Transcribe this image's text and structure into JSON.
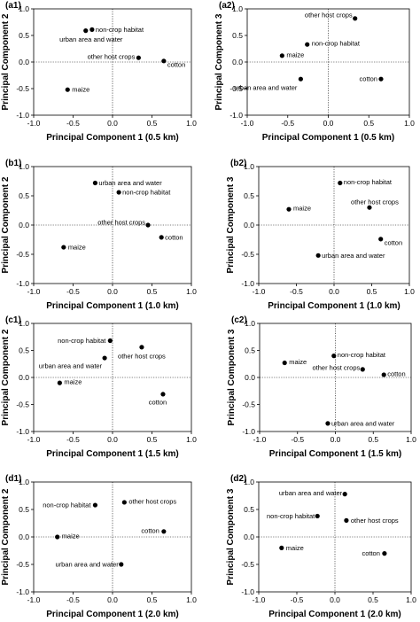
{
  "chart_data": [
    {
      "type": "scatter",
      "panel": "(a1)",
      "xlabel": "Principal Component 1 (0.5 km)",
      "ylabel": "Principal Component 2",
      "xlim": [
        -1.0,
        1.0
      ],
      "ylim": [
        -1.0,
        1.0
      ],
      "xticks": [
        "-1.0",
        "-0.5",
        "0.0",
        "0.5",
        "1.0"
      ],
      "yticks": [
        "1.0",
        "0.5",
        "0.0",
        "-0.5",
        "-1.0"
      ],
      "points": [
        {
          "label": "urban area and water",
          "x": -0.34,
          "y": 0.59
        },
        {
          "label": "non-crop habitat",
          "x": -0.26,
          "y": 0.61
        },
        {
          "label": "other host crops",
          "x": 0.33,
          "y": 0.08
        },
        {
          "label": "cotton",
          "x": 0.65,
          "y": 0.02
        },
        {
          "label": "maize",
          "x": -0.57,
          "y": -0.52
        }
      ]
    },
    {
      "type": "scatter",
      "panel": "(a2)",
      "xlabel": "Principal Component 1 (0.5 km)",
      "ylabel": "Principal Component 3",
      "xlim": [
        -1.0,
        1.0
      ],
      "ylim": [
        -1.0,
        1.0
      ],
      "xticks": [
        "-1.0",
        "-0.5",
        "0.0",
        "0.5",
        "1.0"
      ],
      "yticks": [
        "1.0",
        "0.5",
        "0.0",
        "-0.5",
        "-1.0"
      ],
      "points": [
        {
          "label": "other host crops",
          "x": 0.33,
          "y": 0.82
        },
        {
          "label": "non-crop habitat",
          "x": -0.26,
          "y": 0.33
        },
        {
          "label": "maize",
          "x": -0.57,
          "y": 0.12
        },
        {
          "label": "urban area and water",
          "x": -0.34,
          "y": -0.32
        },
        {
          "label": "cotton",
          "x": 0.65,
          "y": -0.32
        }
      ]
    },
    {
      "type": "scatter",
      "panel": "(b1)",
      "xlabel": "Principal Component 1 (1.0 km)",
      "ylabel": "Principal Component 2",
      "xlim": [
        -1.0,
        1.0
      ],
      "ylim": [
        -1.0,
        1.0
      ],
      "xticks": [
        "-1.0",
        "-0.5",
        "0.0",
        "0.5",
        "1.0"
      ],
      "yticks": [
        "1.0",
        "0.5",
        "0.0",
        "-0.5",
        "-1.0"
      ],
      "points": [
        {
          "label": "urban area and water",
          "x": -0.22,
          "y": 0.72
        },
        {
          "label": "non-crop habitat",
          "x": 0.08,
          "y": 0.56
        },
        {
          "label": "other host crops",
          "x": 0.45,
          "y": 0.0
        },
        {
          "label": "cotton",
          "x": 0.62,
          "y": -0.21
        },
        {
          "label": "maize",
          "x": -0.62,
          "y": -0.38
        }
      ]
    },
    {
      "type": "scatter",
      "panel": "(b2)",
      "xlabel": "Principal Component 1 (1.0 km)",
      "ylabel": "Principal Component 3",
      "xlim": [
        -1.0,
        1.0
      ],
      "ylim": [
        -1.0,
        1.0
      ],
      "xticks": [
        "-1.0",
        "-0.5",
        "0.0",
        "0.5",
        "1.0"
      ],
      "yticks": [
        "1.0",
        "0.5",
        "0.0",
        "-0.5",
        "-1.0"
      ],
      "points": [
        {
          "label": "non-crop habitat",
          "x": 0.08,
          "y": 0.72
        },
        {
          "label": "other host crops",
          "x": 0.47,
          "y": 0.3
        },
        {
          "label": "maize",
          "x": -0.6,
          "y": 0.27
        },
        {
          "label": "cotton",
          "x": 0.62,
          "y": -0.24
        },
        {
          "label": "urban area and water",
          "x": -0.21,
          "y": -0.52
        }
      ]
    },
    {
      "type": "scatter",
      "panel": "(c1)",
      "xlabel": "Principal Component 1 (1.5 km)",
      "ylabel": "Principal Component 2",
      "xlim": [
        -1.0,
        1.0
      ],
      "ylim": [
        -1.0,
        1.0
      ],
      "xticks": [
        "-1.0",
        "-0.5",
        "0.0",
        "0.5",
        "1.0"
      ],
      "yticks": [
        "1.0",
        "0.5",
        "0.0",
        "-0.5",
        "-1.0"
      ],
      "points": [
        {
          "label": "non-crop habitat",
          "x": -0.03,
          "y": 0.68
        },
        {
          "label": "other host crops",
          "x": 0.37,
          "y": 0.56
        },
        {
          "label": "urban area and water",
          "x": -0.1,
          "y": 0.36
        },
        {
          "label": "maize",
          "x": -0.67,
          "y": -0.1
        },
        {
          "label": "cotton",
          "x": 0.64,
          "y": -0.31
        }
      ]
    },
    {
      "type": "scatter",
      "panel": "(c2)",
      "xlabel": "Principal Component 1 (1.5 km)",
      "ylabel": "Principal Component 3",
      "xlim": [
        -1.0,
        1.0
      ],
      "ylim": [
        -1.0,
        1.0
      ],
      "xticks": [
        "-1.0",
        "-0.5",
        "0.0",
        "0.5",
        "1.0"
      ],
      "yticks": [
        "1.0",
        "0.5",
        "0.0",
        "-0.5",
        "-1.0"
      ],
      "points": [
        {
          "label": "non-crop habitat",
          "x": -0.02,
          "y": 0.4
        },
        {
          "label": "maize",
          "x": -0.67,
          "y": 0.27
        },
        {
          "label": "other host crops",
          "x": 0.36,
          "y": 0.15
        },
        {
          "label": "cotton",
          "x": 0.64,
          "y": 0.05
        },
        {
          "label": "urban area and water",
          "x": -0.1,
          "y": -0.85
        }
      ]
    },
    {
      "type": "scatter",
      "panel": "(d1)",
      "xlabel": "Principal Component 1 (2.0 km)",
      "ylabel": "Principal Component 2",
      "xlim": [
        -1.0,
        1.0
      ],
      "ylim": [
        -1.0,
        1.0
      ],
      "xticks": [
        "-1.0",
        "-0.5",
        "0.0",
        "0.5",
        "1.0"
      ],
      "yticks": [
        "1.0",
        "0.5",
        "0.0",
        "-0.5",
        "-1.0"
      ],
      "points": [
        {
          "label": "other host crops",
          "x": 0.15,
          "y": 0.63
        },
        {
          "label": "non-crop habitat",
          "x": -0.22,
          "y": 0.58
        },
        {
          "label": "cotton",
          "x": 0.65,
          "y": 0.1
        },
        {
          "label": "maize",
          "x": -0.7,
          "y": 0.0
        },
        {
          "label": "urban area and water",
          "x": 0.11,
          "y": -0.5
        }
      ]
    },
    {
      "type": "scatter",
      "panel": "(d2)",
      "xlabel": "Principal Component 1 (2.0 km)",
      "ylabel": "Principal Component 3",
      "xlim": [
        -1.0,
        1.0
      ],
      "ylim": [
        -1.0,
        1.0
      ],
      "xticks": [
        "-1.0",
        "-0.5",
        "0.0",
        "0.5",
        "1.0"
      ],
      "yticks": [
        "1.0",
        "0.5",
        "0.0",
        "-0.5",
        "-1.0"
      ],
      "points": [
        {
          "label": "urban area and water",
          "x": 0.13,
          "y": 0.78
        },
        {
          "label": "non-crop habitat",
          "x": -0.23,
          "y": 0.38
        },
        {
          "label": "other host crops",
          "x": 0.15,
          "y": 0.3
        },
        {
          "label": "maize",
          "x": -0.7,
          "y": -0.2
        },
        {
          "label": "cotton",
          "x": 0.65,
          "y": -0.3
        }
      ]
    }
  ]
}
